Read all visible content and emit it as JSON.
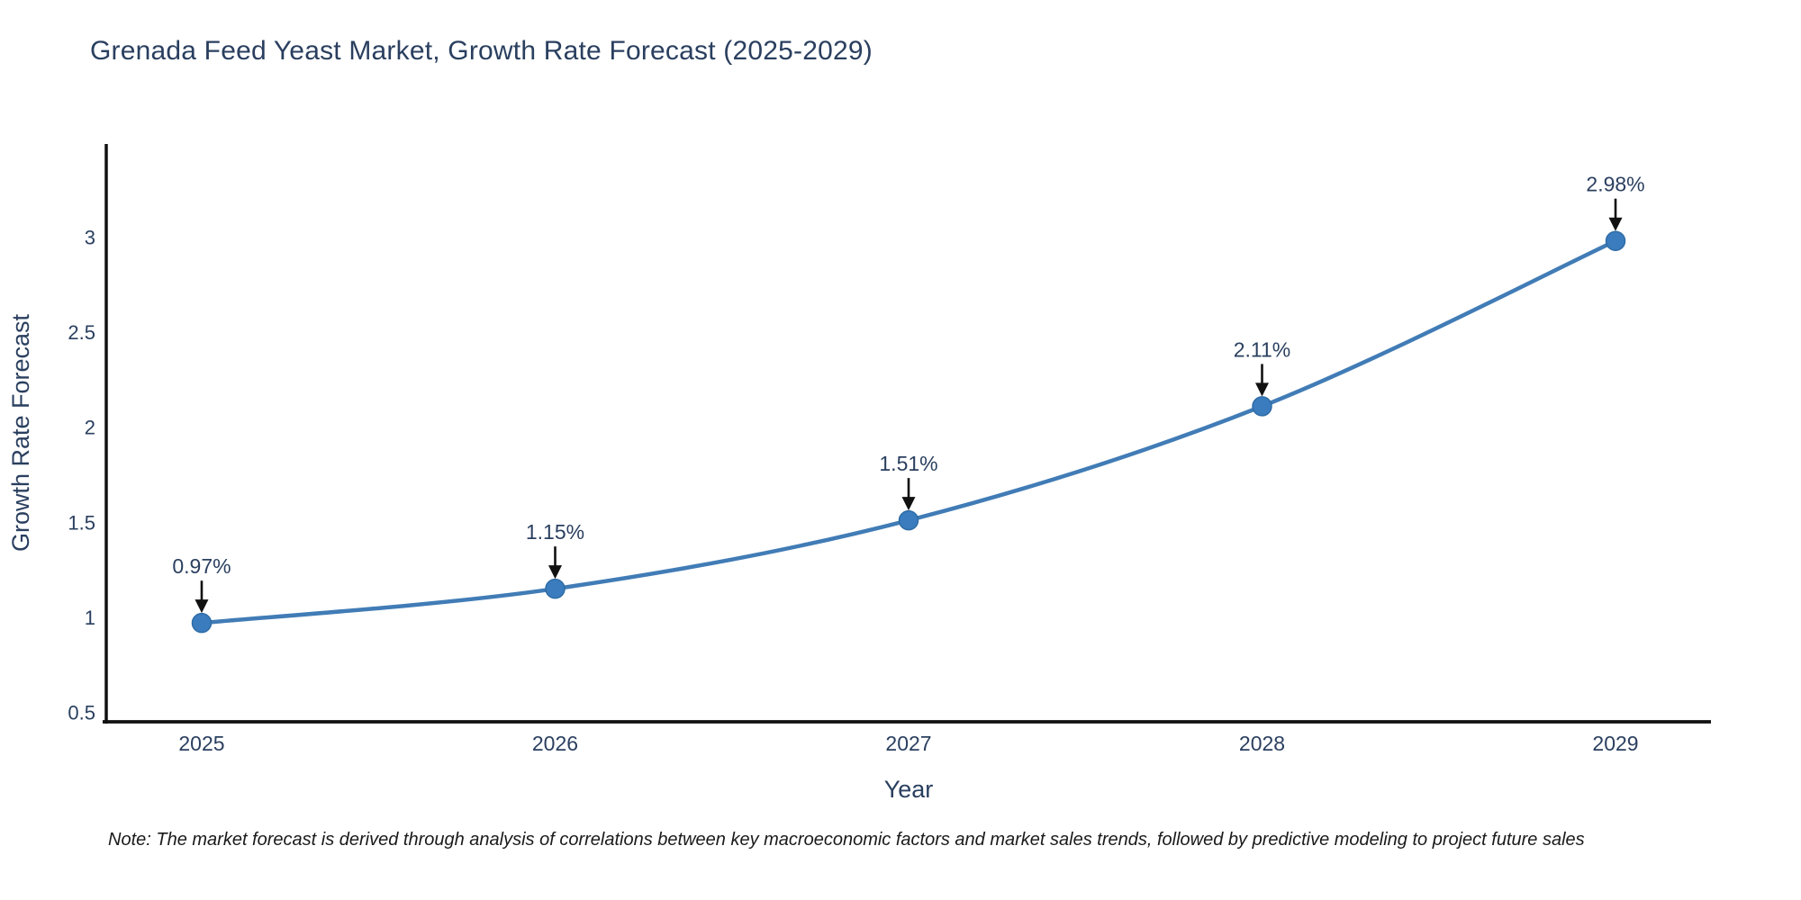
{
  "header": {
    "title": "Grenada Feed Yeast Market, Growth Rate Forecast (2025-2029)"
  },
  "footnote": {
    "text": "Note: The market forecast is derived through analysis of correlations between key macroeconomic factors and market sales trends, followed by predictive modeling to project future sales"
  },
  "chart_data": {
    "type": "line",
    "title": "Grenada Feed Yeast Market, Growth Rate Forecast (2025-2029)",
    "xlabel": "Year",
    "ylabel": "Growth Rate Forecast",
    "x": [
      2025,
      2026,
      2027,
      2028,
      2029
    ],
    "values": [
      0.97,
      1.15,
      1.51,
      2.11,
      2.98
    ],
    "point_labels": [
      "0.97%",
      "1.15%",
      "1.51%",
      "2.11%",
      "2.98%"
    ],
    "x_tick_labels": [
      "2025",
      "2026",
      "2027",
      "2028",
      "2029"
    ],
    "y_ticks": [
      0.5,
      1,
      1.5,
      2,
      2.5,
      3
    ],
    "y_tick_labels": [
      "0.5",
      "1",
      "1.5",
      "2",
      "2.5",
      "3"
    ],
    "xlim": [
      2024.73,
      2029.27
    ],
    "ylim": [
      0.45,
      3.49
    ],
    "grid": false,
    "legend": "none",
    "line_shape": "spline",
    "colors": {
      "line": "#417cb6",
      "marker_fill": "#3a7cbe",
      "marker_edge": "#2e6ca5",
      "axis_line": "#111111",
      "tick_text": "#2a3f5f",
      "axis_title_text": "#2a3f5f",
      "annotation_text": "#2a3f5f",
      "annotation_arrow": "#111111",
      "background": "#ffffff"
    }
  }
}
